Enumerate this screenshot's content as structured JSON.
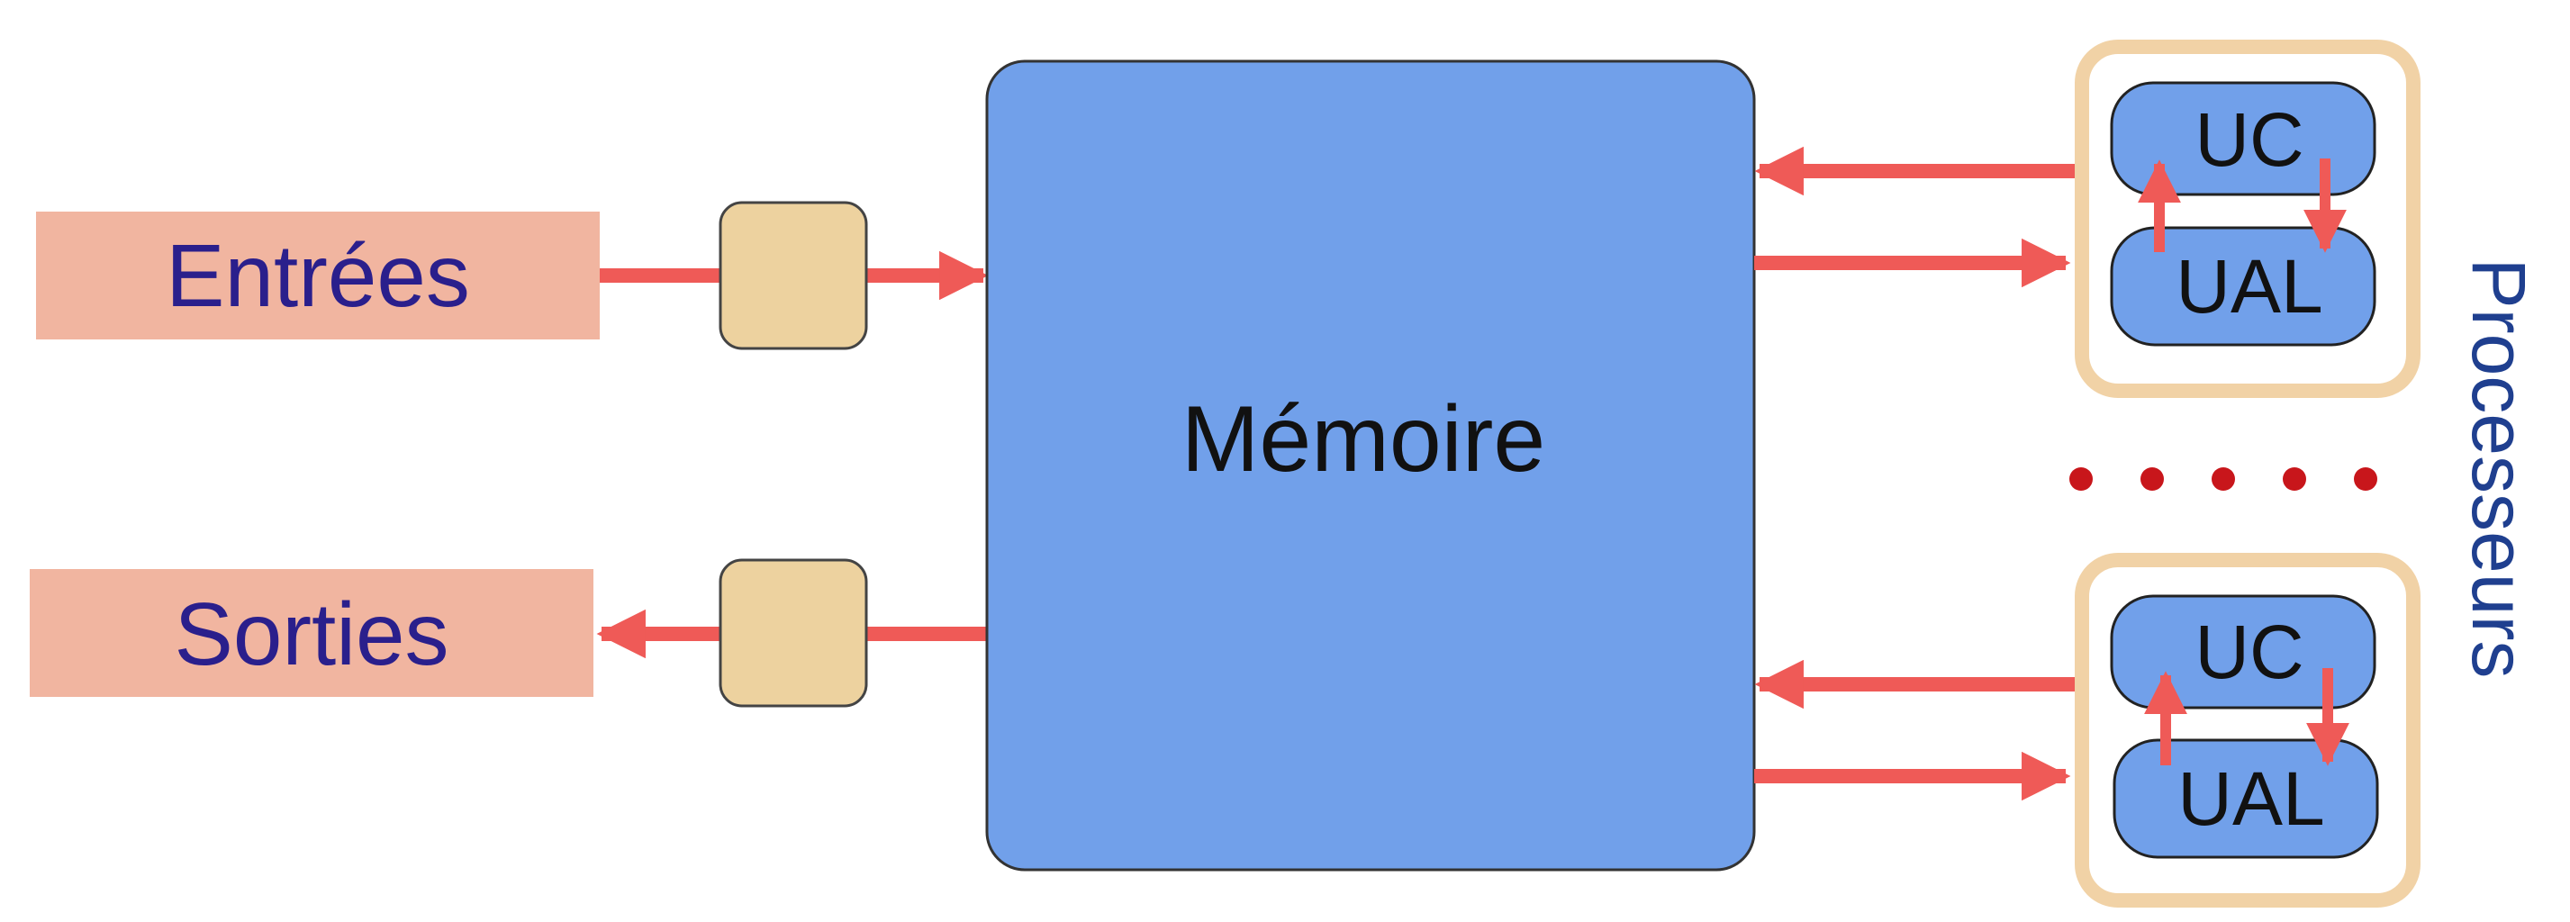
{
  "colors": {
    "io_box": "#f1b5a0",
    "io_text": "#2a1f8c",
    "memory_fill": "#71a0ea",
    "memory_text": "#111111",
    "buffer_fill": "#edd29f",
    "processor_frame": "#f1d2a6",
    "arrow": "#ef5a57",
    "dots": "#c8161b",
    "processors_text": "#1f3f8f"
  },
  "inputs": {
    "label": "Entrées"
  },
  "outputs": {
    "label": "Sorties"
  },
  "memory": {
    "label": "Mémoire"
  },
  "processors": {
    "label": "Processeurs",
    "units": [
      {
        "control_unit": "UC",
        "alu": "UAL"
      },
      {
        "control_unit": "UC",
        "alu": "UAL"
      }
    ],
    "ellipsis_dots": 5
  }
}
